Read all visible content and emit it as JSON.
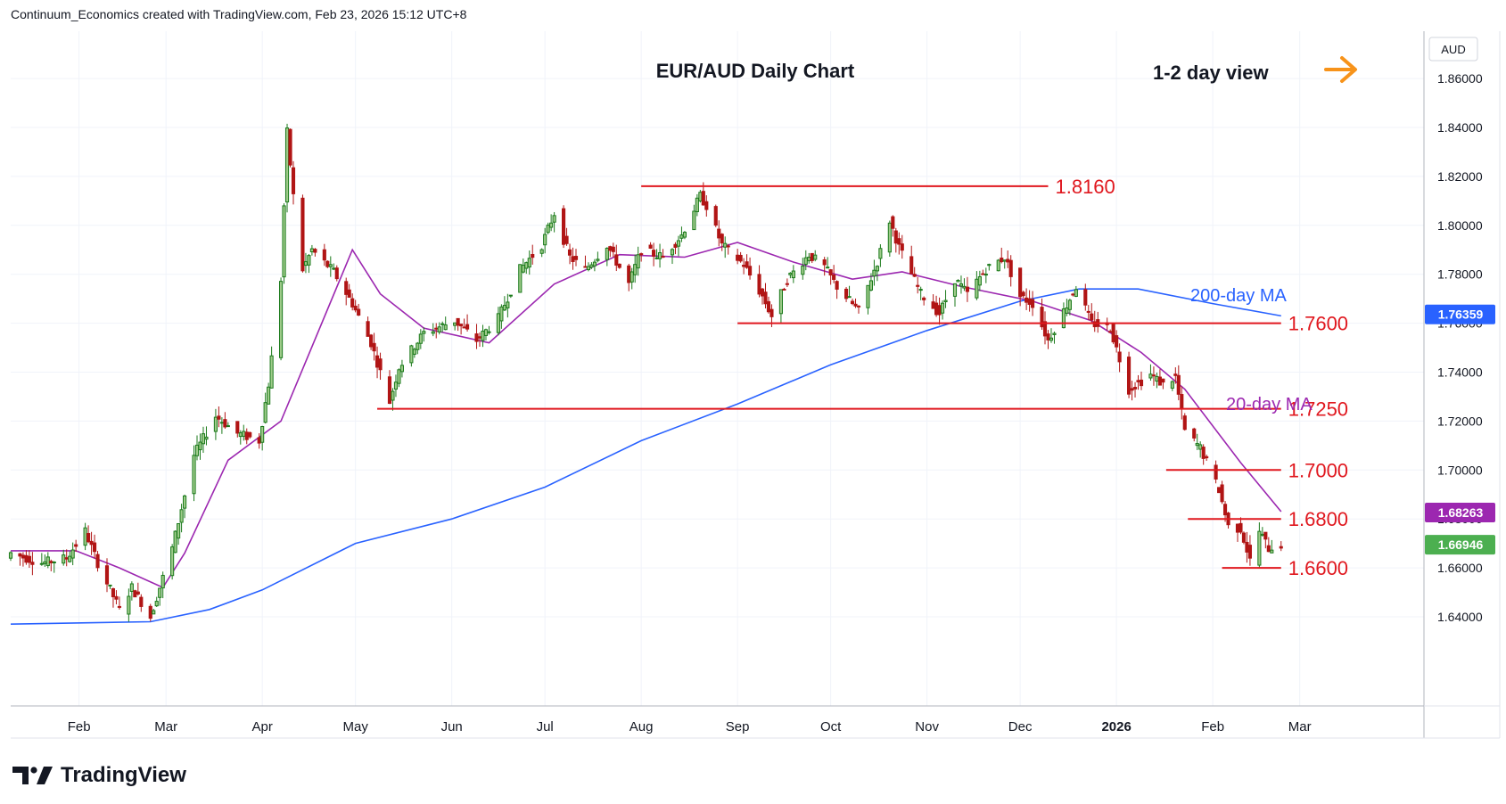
{
  "header": {
    "credit": "Continuum_Economics created with TradingView.com, Feb 23, 2026 15:12 UTC+8"
  },
  "branding": {
    "logo_text": "TradingView",
    "logo_icon": "tradingview-logo-icon"
  },
  "annotations": {
    "chart_title": "EUR/AUD Daily Chart",
    "view_label": "1-2 day view",
    "view_arrow_icon": "arrow-right-icon",
    "view_arrow_color": "#f7931a",
    "ma200_label": "200-day MA",
    "ma20_label": "20-day MA"
  },
  "chart_data": {
    "type": "candlestick",
    "title": "EUR/AUD Daily Chart",
    "currency_label": "AUD",
    "ylim": [
      1.62,
      1.875
    ],
    "y_ticks": [
      "1.64000",
      "1.66000",
      "1.68000",
      "1.70000",
      "1.72000",
      "1.74000",
      "1.76000",
      "1.78000",
      "1.80000",
      "1.82000",
      "1.84000",
      "1.86000"
    ],
    "x_ticks": [
      {
        "label": "Feb",
        "date": "2025-02-01"
      },
      {
        "label": "Mar",
        "date": "2025-03-01"
      },
      {
        "label": "Apr",
        "date": "2025-04-01"
      },
      {
        "label": "May",
        "date": "2025-05-01"
      },
      {
        "label": "Jun",
        "date": "2025-06-01"
      },
      {
        "label": "Jul",
        "date": "2025-07-01"
      },
      {
        "label": "Aug",
        "date": "2025-08-01"
      },
      {
        "label": "Sep",
        "date": "2025-09-01"
      },
      {
        "label": "Oct",
        "date": "2025-10-01"
      },
      {
        "label": "Nov",
        "date": "2025-11-01"
      },
      {
        "label": "Dec",
        "date": "2025-12-01"
      },
      {
        "label": "2026",
        "date": "2026-01-01"
      },
      {
        "label": "Feb",
        "date": "2026-02-01"
      },
      {
        "label": "Mar",
        "date": "2026-03-01"
      }
    ],
    "x_range": [
      "2025-01-10",
      "2026-04-10"
    ],
    "grid": true,
    "colors": {
      "up": "#1b7a1b",
      "up_fill": "#9ecb8a",
      "down": "#b11515",
      "down_fill": "#b11515",
      "ma20": "#9c27b0",
      "ma200": "#2962ff",
      "level": "#e0181f",
      "last_price_bg": "#4caf50",
      "ma20_badge_bg": "#9c27b0",
      "ma200_badge_bg": "#2962ff"
    },
    "price_keys": [
      [
        "2025-01-10",
        1.666
      ],
      [
        "2025-01-20",
        1.662
      ],
      [
        "2025-01-28",
        1.664
      ],
      [
        "2025-02-03",
        1.675
      ],
      [
        "2025-02-07",
        1.662
      ],
      [
        "2025-02-14",
        1.643
      ],
      [
        "2025-02-18",
        1.652
      ],
      [
        "2025-02-24",
        1.64
      ],
      [
        "2025-03-03",
        1.668
      ],
      [
        "2025-03-10",
        1.706
      ],
      [
        "2025-03-17",
        1.722
      ],
      [
        "2025-03-24",
        1.715
      ],
      [
        "2025-03-31",
        1.712
      ],
      [
        "2025-04-03",
        1.735
      ],
      [
        "2025-04-07",
        1.778
      ],
      [
        "2025-04-09",
        1.838
      ],
      [
        "2025-04-11",
        1.812
      ],
      [
        "2025-04-14",
        1.782
      ],
      [
        "2025-04-17",
        1.79
      ],
      [
        "2025-04-24",
        1.781
      ],
      [
        "2025-04-30",
        1.768
      ],
      [
        "2025-05-06",
        1.752
      ],
      [
        "2025-05-12",
        1.728
      ],
      [
        "2025-05-15",
        1.742
      ],
      [
        "2025-05-23",
        1.756
      ],
      [
        "2025-06-02",
        1.761
      ],
      [
        "2025-06-09",
        1.753
      ],
      [
        "2025-06-16",
        1.762
      ],
      [
        "2025-06-23",
        1.782
      ],
      [
        "2025-06-30",
        1.792
      ],
      [
        "2025-07-04",
        1.805
      ],
      [
        "2025-07-09",
        1.787
      ],
      [
        "2025-07-14",
        1.782
      ],
      [
        "2025-07-21",
        1.792
      ],
      [
        "2025-07-28",
        1.776
      ],
      [
        "2025-08-01",
        1.79
      ],
      [
        "2025-08-08",
        1.787
      ],
      [
        "2025-08-14",
        1.796
      ],
      [
        "2025-08-20",
        1.812
      ],
      [
        "2025-08-22",
        1.808
      ],
      [
        "2025-08-27",
        1.792
      ],
      [
        "2025-09-03",
        1.784
      ],
      [
        "2025-09-09",
        1.771
      ],
      [
        "2025-09-12",
        1.763
      ],
      [
        "2025-09-17",
        1.778
      ],
      [
        "2025-09-24",
        1.788
      ],
      [
        "2025-09-29",
        1.783
      ],
      [
        "2025-10-03",
        1.775
      ],
      [
        "2025-10-10",
        1.765
      ],
      [
        "2025-10-16",
        1.785
      ],
      [
        "2025-10-20",
        1.802
      ],
      [
        "2025-10-23",
        1.791
      ],
      [
        "2025-10-30",
        1.772
      ],
      [
        "2025-11-05",
        1.764
      ],
      [
        "2025-11-10",
        1.778
      ],
      [
        "2025-11-14",
        1.772
      ],
      [
        "2025-11-20",
        1.782
      ],
      [
        "2025-11-26",
        1.787
      ],
      [
        "2025-12-01",
        1.771
      ],
      [
        "2025-12-05",
        1.768
      ],
      [
        "2025-12-10",
        1.753
      ],
      [
        "2025-12-15",
        1.765
      ],
      [
        "2025-12-19",
        1.775
      ],
      [
        "2025-12-24",
        1.76
      ],
      [
        "2025-12-30",
        1.758
      ],
      [
        "2026-01-05",
        1.733
      ],
      [
        "2026-01-12",
        1.739
      ],
      [
        "2026-01-16",
        1.735
      ],
      [
        "2026-01-20",
        1.738
      ],
      [
        "2026-01-23",
        1.716
      ],
      [
        "2026-01-28",
        1.709
      ],
      [
        "2026-02-03",
        1.692
      ],
      [
        "2026-02-06",
        1.677
      ],
      [
        "2026-02-10",
        1.676
      ],
      [
        "2026-02-13",
        1.663
      ],
      [
        "2026-02-16",
        1.675
      ],
      [
        "2026-02-19",
        1.668
      ],
      [
        "2026-02-23",
        1.6695
      ]
    ],
    "series": [
      {
        "name": "20-day MA",
        "x": [
          "2025-01-10",
          "2025-01-31",
          "2025-02-14",
          "2025-02-28",
          "2025-03-07",
          "2025-03-21",
          "2025-04-07",
          "2025-04-30",
          "2025-05-09",
          "2025-05-23",
          "2025-06-13",
          "2025-07-04",
          "2025-07-25",
          "2025-08-15",
          "2025-09-01",
          "2025-09-19",
          "2025-10-08",
          "2025-10-24",
          "2025-11-12",
          "2025-12-05",
          "2025-12-24",
          "2026-01-09",
          "2026-01-23",
          "2026-02-10",
          "2026-02-23"
        ],
        "values": [
          1.667,
          1.667,
          1.66,
          1.652,
          1.666,
          1.704,
          1.72,
          1.79,
          1.772,
          1.758,
          1.752,
          1.776,
          1.788,
          1.787,
          1.793,
          1.785,
          1.778,
          1.781,
          1.775,
          1.769,
          1.761,
          1.748,
          1.733,
          1.703,
          1.683
        ]
      },
      {
        "name": "200-day MA",
        "x": [
          "2025-01-10",
          "2025-02-24",
          "2025-03-15",
          "2025-04-01",
          "2025-05-01",
          "2025-06-01",
          "2025-07-01",
          "2025-08-01",
          "2025-09-01",
          "2025-10-01",
          "2025-11-01",
          "2025-12-01",
          "2025-12-20",
          "2026-01-08",
          "2026-02-01",
          "2026-02-23"
        ],
        "values": [
          1.637,
          1.638,
          1.643,
          1.651,
          1.67,
          1.68,
          1.693,
          1.712,
          1.727,
          1.743,
          1.757,
          1.769,
          1.774,
          1.774,
          1.768,
          1.763
        ]
      }
    ],
    "levels": [
      {
        "label": "1.8160",
        "value": 1.816,
        "from": "2025-08-01",
        "to": "2025-12-10"
      },
      {
        "label": "1.7600",
        "value": 1.76,
        "from": "2025-09-01",
        "to": "2026-02-23"
      },
      {
        "label": "1.7250",
        "value": 1.725,
        "from": "2025-05-08",
        "to": "2026-02-23"
      },
      {
        "label": "1.7000",
        "value": 1.7,
        "from": "2026-01-17",
        "to": "2026-02-23"
      },
      {
        "label": "1.6800",
        "value": 1.68,
        "from": "2026-01-24",
        "to": "2026-02-23"
      },
      {
        "label": "1.6600",
        "value": 1.66,
        "from": "2026-02-04",
        "to": "2026-02-23"
      }
    ],
    "price_badges": [
      {
        "label": "1.76359",
        "value": 1.76359,
        "kind": "ma200"
      },
      {
        "label": "1.68263",
        "value": 1.68263,
        "kind": "ma20"
      },
      {
        "label": "1.66946",
        "value": 1.66946,
        "kind": "last"
      }
    ]
  }
}
